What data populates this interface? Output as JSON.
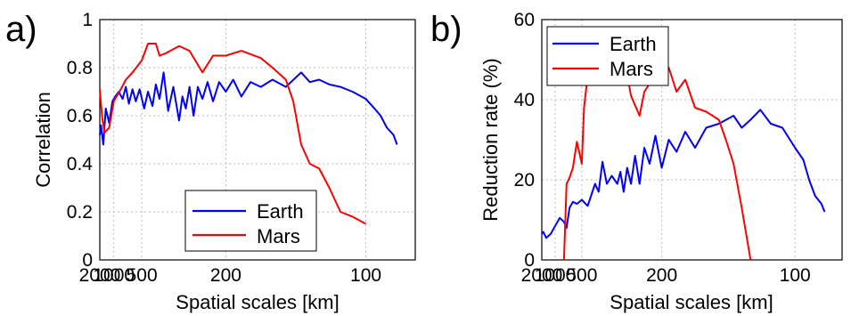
{
  "chart_data": [
    {
      "type": "line",
      "panel_label": "a)",
      "xlabel": "Spatial scales [km]",
      "ylabel": "Correlation",
      "x_scale": "reciprocal",
      "xlim": [
        2000,
        85
      ],
      "ylim": [
        0,
        1
      ],
      "x_ticks": [
        2000,
        1000,
        500,
        200,
        100
      ],
      "x_tick_labels": [
        "2000",
        "1000",
        "500",
        "200",
        "100"
      ],
      "y_ticks": [
        0,
        0.2,
        0.4,
        0.6,
        0.8,
        1
      ],
      "y_tick_labels": [
        "0",
        "0.2",
        "0.4",
        "0.6",
        "0.8",
        "1"
      ],
      "grid": true,
      "legend": {
        "placement": "bottom-right"
      },
      "series": [
        {
          "name": "Earth",
          "color": "#0000ff",
          "x": [
            2000,
            1850,
            1600,
            1400,
            1200,
            1050,
            950,
            850,
            760,
            700,
            650,
            600,
            560,
            520,
            480,
            450,
            420,
            400,
            380,
            360,
            340,
            320,
            300,
            290,
            280,
            270,
            260,
            250,
            240,
            230,
            220,
            210,
            200,
            190,
            180,
            170,
            160,
            150,
            140,
            130,
            125,
            120,
            115,
            110,
            105,
            100,
            97,
            95,
            93,
            91,
            90
          ],
          "y": [
            0.52,
            0.56,
            0.48,
            0.63,
            0.57,
            0.66,
            0.68,
            0.7,
            0.67,
            0.72,
            0.65,
            0.71,
            0.66,
            0.71,
            0.63,
            0.7,
            0.64,
            0.73,
            0.67,
            0.78,
            0.62,
            0.72,
            0.58,
            0.68,
            0.63,
            0.72,
            0.6,
            0.72,
            0.67,
            0.74,
            0.66,
            0.74,
            0.7,
            0.75,
            0.68,
            0.74,
            0.72,
            0.75,
            0.72,
            0.78,
            0.74,
            0.75,
            0.73,
            0.72,
            0.7,
            0.67,
            0.63,
            0.6,
            0.55,
            0.52,
            0.48
          ]
        },
        {
          "name": "Mars",
          "color": "#ff0000",
          "x": [
            2000,
            1850,
            1700,
            1500,
            1200,
            1000,
            800,
            700,
            600,
            500,
            450,
            400,
            380,
            350,
            300,
            270,
            240,
            220,
            200,
            180,
            160,
            150,
            140,
            135,
            130,
            125,
            120,
            115,
            110,
            105,
            100
          ],
          "y": [
            0.71,
            0.65,
            0.59,
            0.53,
            0.55,
            0.66,
            0.71,
            0.75,
            0.78,
            0.83,
            0.9,
            0.9,
            0.85,
            0.86,
            0.89,
            0.87,
            0.78,
            0.85,
            0.85,
            0.87,
            0.84,
            0.8,
            0.75,
            0.66,
            0.48,
            0.4,
            0.38,
            0.3,
            0.2,
            0.18,
            0.15
          ]
        }
      ]
    },
    {
      "type": "line",
      "panel_label": "b)",
      "xlabel": "Spatial scales [km]",
      "ylabel": "Reduction rate (%)",
      "x_scale": "reciprocal",
      "xlim": [
        2000,
        85
      ],
      "ylim": [
        0,
        60
      ],
      "x_ticks": [
        2000,
        1000,
        500,
        200,
        100
      ],
      "x_tick_labels": [
        "2000",
        "1000",
        "500",
        "200",
        "100"
      ],
      "y_ticks": [
        0,
        20,
        40,
        60
      ],
      "y_tick_labels": [
        "0",
        "20",
        "40",
        "60"
      ],
      "grid": true,
      "legend": {
        "placement": "top-left"
      },
      "series": [
        {
          "name": "Earth",
          "color": "#0000ff",
          "x": [
            2000,
            1800,
            1500,
            1200,
            1000,
            850,
            750,
            700,
            650,
            600,
            550,
            500,
            450,
            400,
            380,
            360,
            340,
            320,
            300,
            290,
            280,
            270,
            260,
            250,
            240,
            230,
            220,
            210,
            200,
            190,
            180,
            170,
            160,
            150,
            140,
            130,
            125,
            120,
            115,
            110,
            105,
            100,
            97,
            95,
            93,
            91,
            90
          ],
          "y": [
            6.5,
            7,
            5.5,
            6.5,
            8.5,
            10.5,
            9.5,
            8,
            13,
            14.5,
            14,
            15,
            13.5,
            19,
            17,
            24.5,
            19,
            21,
            19,
            22,
            17,
            23,
            19,
            26,
            19,
            28,
            24,
            31,
            23,
            30,
            27,
            32,
            28,
            33,
            34,
            36,
            33,
            35,
            37.5,
            34,
            33,
            28,
            25,
            20,
            16,
            14,
            12
          ]
        },
        {
          "name": "Mars",
          "color": "#ff0000",
          "x": [
            750,
            700,
            650,
            600,
            550,
            500,
            480,
            450,
            430,
            410,
            400,
            390,
            370,
            350,
            330,
            300,
            280,
            260,
            240,
            230,
            220,
            210,
            200,
            190,
            180,
            170,
            160,
            150,
            140,
            135,
            130,
            125,
            120
          ],
          "y": [
            0,
            19,
            20.5,
            23,
            29.5,
            24,
            38,
            46,
            53,
            55.5,
            55.5,
            47,
            45.5,
            47,
            55,
            51,
            51,
            41,
            36,
            42,
            44,
            47,
            46,
            48,
            42,
            45,
            38,
            37,
            35,
            30,
            24,
            13,
            0
          ]
        }
      ]
    }
  ]
}
